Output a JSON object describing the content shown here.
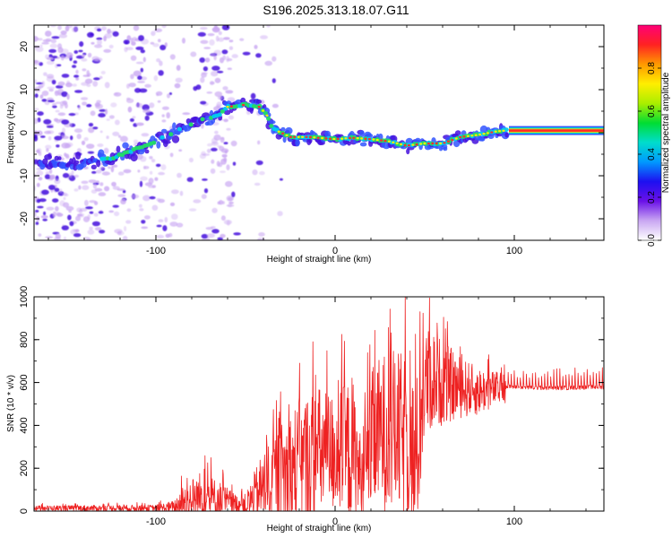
{
  "title": "S196.2025.313.18.07.G11",
  "colors": {
    "snr_line": "#ee2222",
    "track_core": "#ff2a2a",
    "track_mid": "#22dd66",
    "track_halo": "#3355ff",
    "noise_dark": "#4411dd",
    "noise_light": "#c9a7f2",
    "axis": "#000000"
  },
  "chart_data": [
    {
      "type": "heatmap",
      "name": "spectrogram",
      "xlabel": "Height of straight line (km)",
      "ylabel": "Frequency (Hz)",
      "xlim": [
        -168,
        150
      ],
      "ylim": [
        -25,
        25
      ],
      "xticks": [
        -100,
        0,
        100
      ],
      "xtick_labels": [
        "-100",
        "0",
        "100"
      ],
      "yticks": [
        -20,
        -10,
        0,
        10,
        20
      ],
      "ytick_labels": [
        "-20",
        "-10",
        "0",
        "10",
        "20"
      ],
      "ridge": {
        "x": [
          -150,
          -125,
          -100,
          -85,
          -75,
          -65,
          -60,
          -50,
          -42,
          -38,
          -35,
          -30,
          -25,
          -15,
          0,
          10,
          20,
          30,
          40,
          50,
          60,
          70,
          80,
          90,
          95,
          100,
          150
        ],
        "y": [
          -7,
          -6,
          -2,
          1,
          3,
          4,
          6,
          6.5,
          6,
          4,
          1,
          0,
          -1,
          -1,
          -1.5,
          -1.2,
          -1.5,
          -2,
          -3,
          -2.5,
          -2.5,
          -1,
          -0.5,
          0.3,
          0.5,
          0.5,
          0.5
        ]
      },
      "colorbar": {
        "label": "Normalized spectral amplitude",
        "range": [
          0,
          1
        ],
        "ticks": [
          0,
          0.2,
          0.4,
          0.6,
          0.8
        ],
        "tick_labels": [
          "0.0",
          "0.2",
          "0.4",
          "0.6",
          "0.8"
        ],
        "colormap": [
          "#ffffff",
          "#c9a7f2",
          "#6a11e8",
          "#1d10f0",
          "#0099ff",
          "#00ddcc",
          "#00dd33",
          "#aaee00",
          "#ffee00",
          "#ff9900",
          "#ff2222",
          "#ff0077"
        ]
      }
    },
    {
      "type": "line",
      "name": "snr",
      "xlabel": "Height of straight line (km)",
      "ylabel": "SNR (10 * v/v)",
      "xlim": [
        -168,
        150
      ],
      "ylim": [
        0,
        1000
      ],
      "xticks": [
        -100,
        0,
        100
      ],
      "xtick_labels": [
        "-100",
        "0",
        "100"
      ],
      "yticks": [
        0,
        200,
        400,
        600,
        800,
        1000
      ],
      "ytick_labels": [
        "0",
        "200",
        "400",
        "600",
        "800",
        "1000"
      ],
      "series": [
        {
          "name": "SNR",
          "envelope_x": [
            -168,
            -100,
            -90,
            -85,
            -75,
            -65,
            -55,
            -50,
            -40,
            -30,
            -20,
            -10,
            0,
            10,
            15,
            20,
            25,
            30,
            40,
            45,
            50,
            55,
            60,
            70,
            80,
            90,
            100,
            110,
            120,
            130,
            140,
            150
          ],
          "envelope_base": [
            15,
            15,
            20,
            45,
            80,
            60,
            40,
            30,
            130,
            200,
            230,
            300,
            300,
            310,
            160,
            350,
            400,
            420,
            380,
            250,
            620,
            640,
            620,
            590,
            570,
            580,
            580,
            575,
            575,
            575,
            578,
            578
          ],
          "envelope_amp": [
            15,
            20,
            40,
            110,
            150,
            120,
            50,
            70,
            220,
            300,
            420,
            400,
            350,
            460,
            200,
            420,
            450,
            480,
            480,
            500,
            330,
            290,
            250,
            180,
            140,
            100,
            70,
            70,
            80,
            90,
            90,
            90
          ]
        }
      ]
    }
  ]
}
